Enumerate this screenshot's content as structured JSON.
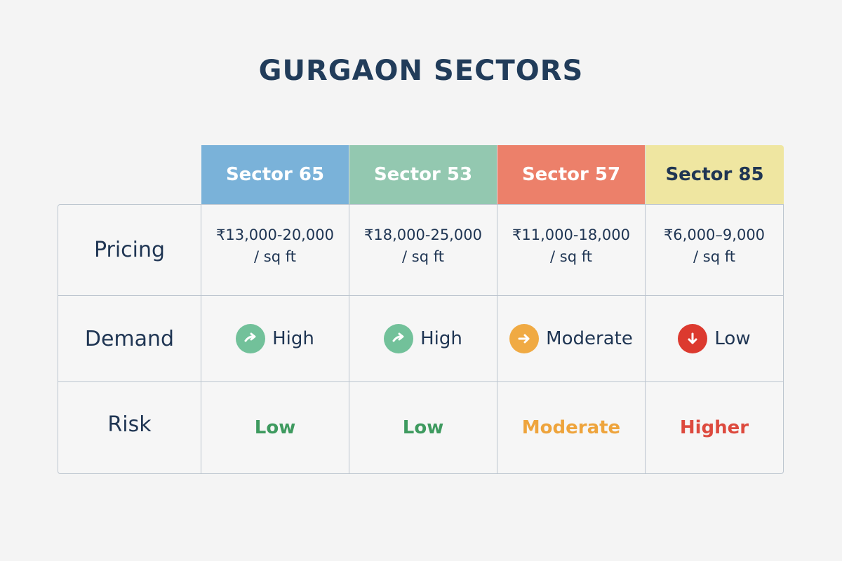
{
  "title": "GURGAON SECTORS",
  "columns": [
    {
      "name": "Sector 65",
      "color": "#7ab2d9",
      "text_color": "#ffffff"
    },
    {
      "name": "Sector 53",
      "color": "#93c8b0",
      "text_color": "#ffffff"
    },
    {
      "name": "Sector 57",
      "color": "#ec806a",
      "text_color": "#ffffff"
    },
    {
      "name": "Sector 85",
      "color": "#efe6a1",
      "text_color": "#1f3553"
    }
  ],
  "rows": {
    "pricing": {
      "label": "Pricing",
      "values": [
        {
          "range": "₹13,000-20,000",
          "unit": "/ sq ft"
        },
        {
          "range": "₹18,000-25,000",
          "unit": "/ sq ft"
        },
        {
          "range": "₹11,000-18,000",
          "unit": "/ sq ft"
        },
        {
          "range": "₹6,000–9,000",
          "unit": "/ sq ft"
        }
      ]
    },
    "demand": {
      "label": "Demand",
      "values": [
        {
          "text": "High",
          "icon": "trend-up-arrow-icon",
          "color": "#72c19a"
        },
        {
          "text": "High",
          "icon": "trend-up-arrow-icon",
          "color": "#72c19a"
        },
        {
          "text": "Moderate",
          "icon": "right-arrow-icon",
          "color": "#f0aa43"
        },
        {
          "text": "Low",
          "icon": "down-arrow-icon",
          "color": "#dc3a2f"
        }
      ]
    },
    "risk": {
      "label": "Risk",
      "values": [
        {
          "text": "Low",
          "color": "#3e9a5f"
        },
        {
          "text": "Low",
          "color": "#3e9a5f"
        },
        {
          "text": "Moderate",
          "color": "#eea43c"
        },
        {
          "text": "Higher",
          "color": "#dd4a3e"
        }
      ]
    }
  }
}
